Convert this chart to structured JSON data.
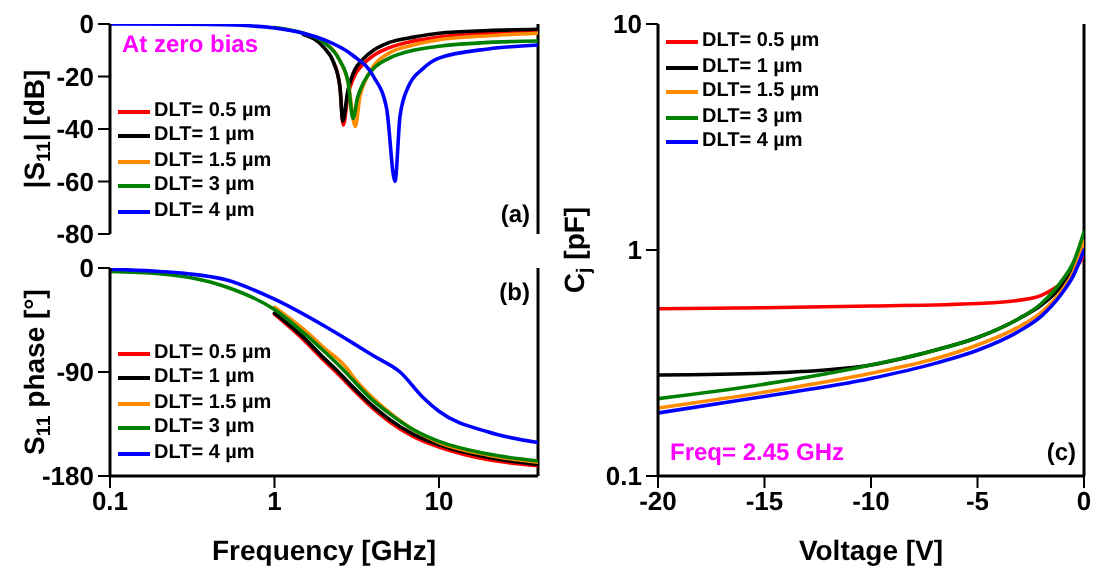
{
  "chart_data": [
    {
      "type": "line",
      "ylabel": "|S$_{11}$| [dB]",
      "xlim": [
        0.1,
        40
      ],
      "xticks": [
        0.1,
        1,
        10
      ],
      "ylim": [
        -80,
        0
      ],
      "yticks": [
        0,
        -20,
        -40,
        -60,
        -80
      ],
      "log": "x",
      "tick_labels": "y",
      "legend": "bottom left",
      "annotations": [
        "At zero bias",
        "(a)"
      ],
      "series": [
        {
          "name": "DLT= 0.5 µm",
          "color": "#ff0000",
          "x": [
            2.3,
            2.5,
            2.62,
            2.8,
            3,
            3.5,
            4,
            5,
            7,
            10,
            20,
            40
          ],
          "values": [
            -15,
            -24,
            -38.5,
            -27,
            -21,
            -15,
            -12,
            -9,
            -6.5,
            -5,
            -3.5,
            -2.5
          ]
        },
        {
          "name": "DLT= 1 µm",
          "color": "#000000",
          "x": [
            1.5,
            2,
            2.3,
            2.5,
            2.6,
            2.8,
            3,
            3.5,
            4,
            5,
            7,
            10,
            20,
            40
          ],
          "values": [
            -4,
            -9,
            -15,
            -24,
            -37,
            -25,
            -19,
            -13,
            -10,
            -7,
            -5,
            -3.5,
            -2.5,
            -2
          ]
        },
        {
          "name": "DLT= 1.5 µm",
          "color": "#ff8c00",
          "x": [
            2,
            2.5,
            2.8,
            3.1,
            3.3,
            3.6,
            4,
            5,
            7,
            10,
            20,
            40
          ],
          "values": [
            -7,
            -14,
            -22,
            -39,
            -28,
            -21,
            -16,
            -11,
            -8,
            -6,
            -4.5,
            -3.5
          ]
        },
        {
          "name": "DLT= 3 µm",
          "color": "#008000",
          "x": [
            1,
            1.5,
            2,
            2.5,
            2.8,
            3,
            3.2,
            3.5,
            4,
            5,
            7,
            10,
            20,
            40
          ],
          "values": [
            -1.3,
            -3.5,
            -7,
            -14,
            -22,
            -36,
            -28,
            -22,
            -17,
            -13,
            -10,
            -8.5,
            -7,
            -6.5
          ]
        },
        {
          "name": "DLT= 4 µm",
          "color": "#0000ff",
          "x": [
            0.1,
            0.3,
            0.5,
            1,
            1.5,
            2,
            3,
            4,
            4.8,
            5.4,
            5.8,
            6.5,
            8,
            10,
            20,
            40
          ],
          "values": [
            0,
            -0.1,
            -0.3,
            -1.5,
            -3.5,
            -6,
            -12,
            -20,
            -32,
            -60,
            -35,
            -24,
            -17,
            -13,
            -9.5,
            -8
          ]
        }
      ]
    },
    {
      "type": "line",
      "xlabel": "Frequency [GHz]",
      "ylabel": "S$_{11}$ phase [°]",
      "xlim": [
        0.1,
        40
      ],
      "xticks": [
        0.1,
        1,
        10
      ],
      "ylim": [
        -180,
        0
      ],
      "yticks": [
        0,
        -90,
        -180
      ],
      "log": "x",
      "legend": "bottom left",
      "annotations": [
        "(b)"
      ],
      "series": [
        {
          "name": "DLT= 0.5 µm",
          "color": "#ff0000",
          "x": [
            1,
            1.5,
            2,
            2.37,
            3,
            4,
            5,
            7,
            10,
            20,
            40
          ],
          "values": [
            -40,
            -62,
            -80,
            -90,
            -105,
            -122,
            -133,
            -146,
            -155,
            -166,
            -171
          ]
        },
        {
          "name": "DLT= 1 µm",
          "color": "#000000",
          "x": [
            1,
            1.5,
            2,
            2.45,
            3,
            4,
            5,
            7,
            10,
            20,
            40
          ],
          "values": [
            -39,
            -60,
            -78,
            -90,
            -103,
            -120,
            -131,
            -144,
            -153,
            -164,
            -170
          ]
        },
        {
          "name": "DLT= 1.5 µm",
          "color": "#ff8c00",
          "x": [
            1,
            1.5,
            2,
            2.8,
            3,
            4,
            5,
            7,
            10,
            20,
            40
          ],
          "values": [
            -34,
            -53,
            -69,
            -88,
            -94,
            -113,
            -125,
            -140,
            -151,
            -162,
            -168
          ]
        },
        {
          "name": "DLT= 3 µm",
          "color": "#008000",
          "x": [
            0.1,
            0.2,
            0.3,
            0.5,
            1,
            1.5,
            2,
            2.7,
            3,
            4,
            5,
            7,
            10,
            20,
            40
          ],
          "values": [
            -3,
            -5,
            -8,
            -16,
            -36,
            -56,
            -72,
            -90,
            -97,
            -115,
            -126,
            -140,
            -150,
            -161,
            -167
          ]
        },
        {
          "name": "DLT= 4 µm",
          "color": "#0000ff",
          "x": [
            0.1,
            0.2,
            0.3,
            0.5,
            1,
            2,
            3,
            4,
            5.8,
            8,
            10,
            20,
            40
          ],
          "values": [
            -1,
            -3,
            -5,
            -10,
            -27,
            -50,
            -65,
            -76,
            -90,
            -112,
            -124,
            -142,
            -151
          ]
        }
      ]
    },
    {
      "type": "line",
      "xlabel": "Voltage [V]",
      "ylabel": "C$_{j}$ [pF]",
      "xlim": [
        -20,
        0
      ],
      "xticks": [
        -20,
        -15,
        -10,
        -5,
        0
      ],
      "ylim": [
        0.1,
        10
      ],
      "yticks": [
        0.1,
        1,
        10
      ],
      "log": "y",
      "legend": "top left",
      "annotations": [
        "Freq= 2.45 GHz",
        "(c)"
      ],
      "series": [
        {
          "name": "DLT= 0.5 µm",
          "color": "#ff0000",
          "x": [
            -20,
            -15,
            -10,
            -5,
            -3,
            -2,
            -1,
            -0.5,
            0
          ],
          "values": [
            0.55,
            0.555,
            0.565,
            0.58,
            0.6,
            0.63,
            0.72,
            0.8,
            0.95
          ]
        },
        {
          "name": "DLT= 1 µm",
          "color": "#000000",
          "x": [
            -20,
            -15,
            -12,
            -10,
            -7,
            -5,
            -3,
            -2,
            -1,
            -0.5,
            0
          ],
          "values": [
            0.28,
            0.285,
            0.295,
            0.31,
            0.36,
            0.41,
            0.5,
            0.57,
            0.7,
            0.82,
            1.05
          ]
        },
        {
          "name": "DLT= 1.5 µm",
          "color": "#ff8c00",
          "x": [
            -20,
            -15,
            -10,
            -7,
            -5,
            -3,
            -2,
            -1,
            -0.5,
            0
          ],
          "values": [
            0.2,
            0.235,
            0.285,
            0.33,
            0.38,
            0.46,
            0.53,
            0.67,
            0.8,
            1.1
          ]
        },
        {
          "name": "DLT= 3 µm",
          "color": "#008000",
          "x": [
            -20,
            -15,
            -10,
            -7,
            -5,
            -3,
            -2,
            -1,
            -0.5,
            0
          ],
          "values": [
            0.22,
            0.255,
            0.31,
            0.36,
            0.41,
            0.5,
            0.58,
            0.74,
            0.88,
            1.2
          ]
        },
        {
          "name": "DLT= 4 µm",
          "color": "#0000ff",
          "x": [
            -20,
            -15,
            -10,
            -7,
            -5,
            -3,
            -2,
            -1,
            -0.5,
            0
          ],
          "values": [
            0.19,
            0.225,
            0.27,
            0.315,
            0.36,
            0.44,
            0.51,
            0.65,
            0.77,
            1.0
          ]
        }
      ]
    }
  ]
}
